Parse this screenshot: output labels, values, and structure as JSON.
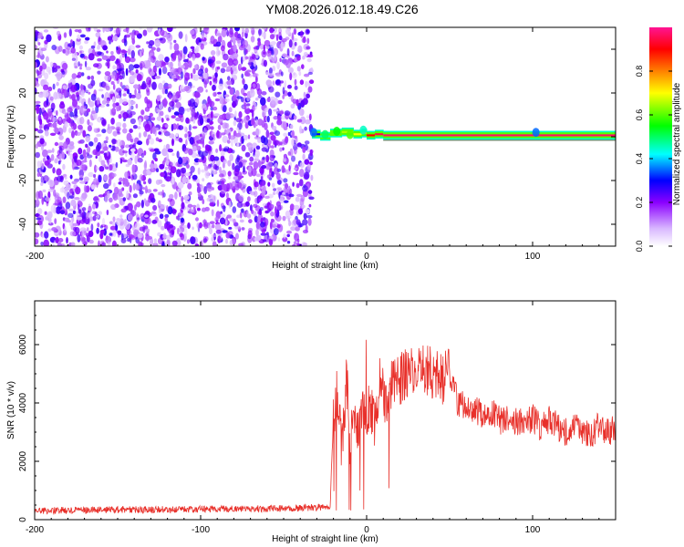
{
  "title": "YM08.2026.012.18.49.C26",
  "chart_data": [
    {
      "type": "heatmap",
      "xlabel": "Height of straight line (km)",
      "ylabel": "Frequency (Hz)",
      "xlim": [
        -200,
        150
      ],
      "ylim": [
        -50,
        50
      ],
      "x_ticks": [
        -200,
        -100,
        0,
        100
      ],
      "y_ticks": [
        -40,
        -20,
        0,
        20,
        40
      ],
      "noise_region_x": [
        -200,
        -33
      ],
      "signal_band": {
        "x": [
          -33,
          -28,
          -22,
          -15,
          -8,
          -3,
          0,
          5,
          10,
          150
        ],
        "freq": [
          1,
          0,
          1.5,
          2,
          1,
          1.5,
          0.5,
          1,
          0.5,
          0.5
        ],
        "amplitude": [
          0.3,
          0.45,
          0.6,
          0.65,
          0.7,
          0.75,
          0.9,
          0.95,
          0.97,
          0.97
        ]
      },
      "colorbar": {
        "label": "Normalized spectral amplitude",
        "range": [
          0,
          1
        ],
        "ticks": [
          0.0,
          0.2,
          0.4,
          0.6,
          0.8
        ],
        "tick_labels": [
          "0.0",
          "0.2",
          "0.4",
          "0.6",
          "0.8"
        ],
        "colors": [
          "#ffffff",
          "#8b00ff",
          "#0000ff",
          "#00ffff",
          "#00ff00",
          "#ffff00",
          "#ff8000",
          "#ff0000",
          "#ff00a0"
        ]
      }
    },
    {
      "type": "line",
      "xlabel": "Height of straight line (km)",
      "ylabel": "SNR (10 * v/v)",
      "xlim": [
        -200,
        150
      ],
      "ylim": [
        0,
        7500
      ],
      "x_ticks": [
        -200,
        -100,
        0,
        100
      ],
      "y_ticks": [
        0,
        2000,
        4000,
        6000
      ],
      "grid": false,
      "line_color": "#e8302a",
      "series": [
        {
          "x": [
            -200,
            -180,
            -160,
            -140,
            -120,
            -100,
            -80,
            -60,
            -40,
            -30,
            -22,
            -20,
            -18,
            -15,
            -12,
            -10,
            -8,
            -5,
            -2,
            0,
            2,
            5,
            8,
            10,
            12,
            15,
            18,
            20,
            25,
            30,
            35,
            40,
            45,
            50,
            52,
            55,
            60,
            65,
            70,
            75,
            80,
            85,
            90,
            95,
            100,
            105,
            110,
            115,
            120,
            125,
            130,
            135,
            140,
            145,
            150
          ],
          "y": [
            300,
            320,
            330,
            340,
            350,
            360,
            370,
            380,
            400,
            420,
            450,
            3500,
            4300,
            2500,
            4800,
            2800,
            3800,
            3000,
            3600,
            3200,
            4000,
            3300,
            4900,
            4500,
            3800,
            4600,
            5000,
            4800,
            5100,
            5000,
            5200,
            5000,
            4800,
            5000,
            4700,
            3900,
            4000,
            3800,
            3600,
            3700,
            3400,
            3500,
            3400,
            3300,
            3500,
            3100,
            3400,
            3200,
            3000,
            3300,
            3100,
            2800,
            3300,
            3000,
            3100
          ]
        }
      ]
    }
  ]
}
